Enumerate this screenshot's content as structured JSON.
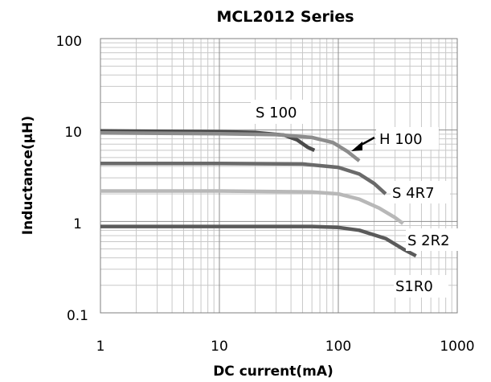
{
  "chart_data": {
    "type": "line",
    "title": "MCL2012 Series",
    "xlabel": "DC current(mA)",
    "ylabel": "Inductance(μH)",
    "xscale": "log",
    "yscale": "log",
    "xlim": [
      1,
      1000
    ],
    "ylim": [
      0.1,
      100
    ],
    "grid": "on",
    "x_ticks": [
      "1",
      "10",
      "100",
      "1000"
    ],
    "y_ticks": [
      "0.1",
      "1",
      "10",
      "100"
    ],
    "series": [
      {
        "name": "S 100",
        "color": "#4a4a4a",
        "points": [
          [
            1,
            9.8
          ],
          [
            10,
            9.6
          ],
          [
            20,
            9.4
          ],
          [
            35,
            8.8
          ],
          [
            45,
            7.8
          ],
          [
            55,
            6.5
          ],
          [
            63,
            6.0
          ]
        ]
      },
      {
        "name": "H 100",
        "color": "#8c8c8c",
        "points": [
          [
            1,
            9.3
          ],
          [
            10,
            9.1
          ],
          [
            30,
            8.9
          ],
          [
            60,
            8.3
          ],
          [
            90,
            7.3
          ],
          [
            120,
            5.8
          ],
          [
            150,
            4.6
          ]
        ]
      },
      {
        "name": "S 4R7",
        "color": "#6a6a6a",
        "points": [
          [
            1,
            4.3
          ],
          [
            10,
            4.3
          ],
          [
            50,
            4.25
          ],
          [
            100,
            3.9
          ],
          [
            150,
            3.3
          ],
          [
            200,
            2.6
          ],
          [
            250,
            2.0
          ]
        ]
      },
      {
        "name": "S 2R2",
        "color": "#b8b8b8",
        "points": [
          [
            1,
            2.15
          ],
          [
            10,
            2.15
          ],
          [
            60,
            2.1
          ],
          [
            100,
            2.0
          ],
          [
            150,
            1.75
          ],
          [
            220,
            1.4
          ],
          [
            300,
            1.1
          ],
          [
            350,
            0.95
          ]
        ]
      },
      {
        "name": "S1R0",
        "color": "#5a5a5a",
        "points": [
          [
            1,
            0.88
          ],
          [
            10,
            0.88
          ],
          [
            60,
            0.88
          ],
          [
            100,
            0.86
          ],
          [
            150,
            0.8
          ],
          [
            250,
            0.65
          ],
          [
            350,
            0.5
          ],
          [
            450,
            0.42
          ]
        ]
      }
    ],
    "annotations": [
      "S 100",
      "H 100",
      "S 4R7",
      "S 2R2",
      "S1R0"
    ]
  }
}
